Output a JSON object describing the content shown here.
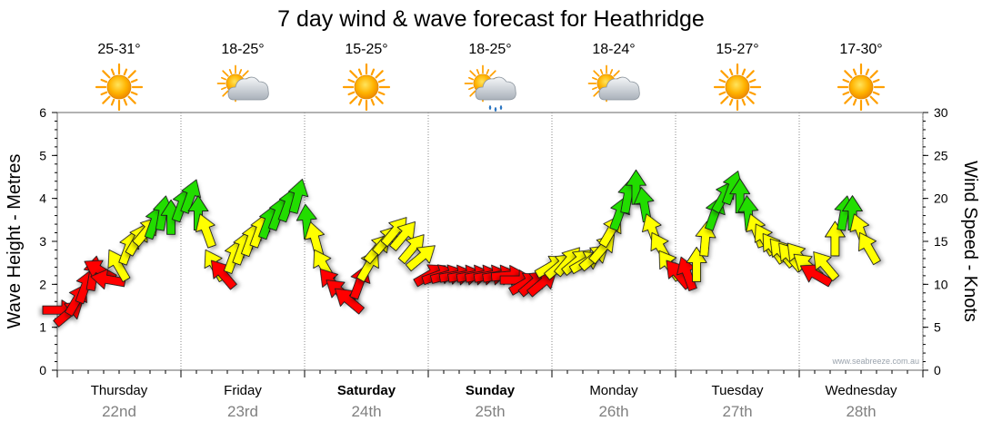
{
  "title": "7 day wind & wave forecast for Heathridge",
  "credit": "www.seabreeze.com.au",
  "days": [
    {
      "day": "Thursday",
      "date": "22nd",
      "temp": "25-31°",
      "icon": "sun-icon",
      "bold": false
    },
    {
      "day": "Friday",
      "date": "23rd",
      "temp": "18-25°",
      "icon": "partly-cloudy-icon",
      "bold": false
    },
    {
      "day": "Saturday",
      "date": "24th",
      "temp": "15-25°",
      "icon": "sun-icon",
      "bold": true
    },
    {
      "day": "Sunday",
      "date": "25th",
      "temp": "18-25°",
      "icon": "rain-cloud-icon",
      "bold": true
    },
    {
      "day": "Monday",
      "date": "26th",
      "temp": "18-24°",
      "icon": "partly-cloudy-icon",
      "bold": false
    },
    {
      "day": "Tuesday",
      "date": "27th",
      "temp": "15-27°",
      "icon": "sun-icon",
      "bold": false
    },
    {
      "day": "Wednesday",
      "date": "28th",
      "temp": "17-30°",
      "icon": "sun-icon",
      "bold": false
    }
  ],
  "colors": {
    "low": "#ff0000",
    "mid": "#ffff00",
    "high": "#22dd00",
    "grid": "#8a8a8a"
  },
  "chart_data": {
    "type": "line",
    "title": "7 day wind & wave forecast for Heathridge",
    "ylabel_left": "Wave Height - Metres",
    "ylabel_right": "Wind Speed - Knots",
    "ylim_left": [
      0,
      6
    ],
    "ylim_right": [
      0,
      30
    ],
    "yticks_left": [
      0,
      1,
      2,
      3,
      4,
      5,
      6
    ],
    "yticks_right": [
      0,
      5,
      10,
      15,
      20,
      25,
      30
    ],
    "x_unit": "days from Thursday 22nd 00:00",
    "series": [
      {
        "name": "Wind Speed - Knots",
        "color_by_speed": {
          "red_below": 12,
          "green_from": 17
        },
        "points": [
          {
            "x": 0.0,
            "kt": 7,
            "dir": 270
          },
          {
            "x": 0.08,
            "kt": 6.5,
            "dir": 230
          },
          {
            "x": 0.15,
            "kt": 8,
            "dir": 210
          },
          {
            "x": 0.22,
            "kt": 9.5,
            "dir": 200
          },
          {
            "x": 0.29,
            "kt": 11,
            "dir": 190
          },
          {
            "x": 0.36,
            "kt": 11.5,
            "dir": 120
          },
          {
            "x": 0.43,
            "kt": 10.5,
            "dir": 100
          },
          {
            "x": 0.5,
            "kt": 12,
            "dir": 150
          },
          {
            "x": 0.57,
            "kt": 14,
            "dir": 200
          },
          {
            "x": 0.64,
            "kt": 15,
            "dir": 210
          },
          {
            "x": 0.71,
            "kt": 16,
            "dir": 220
          },
          {
            "x": 0.78,
            "kt": 17,
            "dir": 200
          },
          {
            "x": 0.85,
            "kt": 18,
            "dir": 190
          },
          {
            "x": 0.92,
            "kt": 17.5,
            "dir": 180
          },
          {
            "x": 1.0,
            "kt": 19,
            "dir": 200
          },
          {
            "x": 1.07,
            "kt": 20,
            "dir": 200
          },
          {
            "x": 1.14,
            "kt": 18,
            "dir": 180
          },
          {
            "x": 1.21,
            "kt": 16,
            "dir": 160
          },
          {
            "x": 1.28,
            "kt": 12,
            "dir": 150
          },
          {
            "x": 1.35,
            "kt": 11,
            "dir": 140
          },
          {
            "x": 1.42,
            "kt": 13,
            "dir": 200
          },
          {
            "x": 1.49,
            "kt": 14,
            "dir": 200
          },
          {
            "x": 1.56,
            "kt": 15,
            "dir": 200
          },
          {
            "x": 1.63,
            "kt": 16,
            "dir": 200
          },
          {
            "x": 1.7,
            "kt": 17,
            "dir": 200
          },
          {
            "x": 1.78,
            "kt": 18,
            "dir": 200
          },
          {
            "x": 1.86,
            "kt": 19,
            "dir": 200
          },
          {
            "x": 1.94,
            "kt": 20,
            "dir": 195
          },
          {
            "x": 2.02,
            "kt": 17,
            "dir": 175
          },
          {
            "x": 2.09,
            "kt": 15,
            "dir": 165
          },
          {
            "x": 2.16,
            "kt": 12,
            "dir": 150
          },
          {
            "x": 2.23,
            "kt": 10,
            "dir": 140
          },
          {
            "x": 2.3,
            "kt": 9,
            "dir": 130
          },
          {
            "x": 2.37,
            "kt": 8,
            "dir": 130
          },
          {
            "x": 2.44,
            "kt": 10,
            "dir": 200
          },
          {
            "x": 2.51,
            "kt": 12,
            "dir": 210
          },
          {
            "x": 2.58,
            "kt": 14,
            "dir": 220
          },
          {
            "x": 2.65,
            "kt": 15,
            "dir": 220
          },
          {
            "x": 2.72,
            "kt": 16,
            "dir": 220
          },
          {
            "x": 2.79,
            "kt": 15.5,
            "dir": 220
          },
          {
            "x": 2.86,
            "kt": 14,
            "dir": 220
          },
          {
            "x": 2.93,
            "kt": 13,
            "dir": 230
          },
          {
            "x": 3.0,
            "kt": 11,
            "dir": 240
          },
          {
            "x": 3.07,
            "kt": 11,
            "dir": 250
          },
          {
            "x": 3.14,
            "kt": 11,
            "dir": 255
          },
          {
            "x": 3.21,
            "kt": 11,
            "dir": 260
          },
          {
            "x": 3.28,
            "kt": 11,
            "dir": 260
          },
          {
            "x": 3.35,
            "kt": 11,
            "dir": 260
          },
          {
            "x": 3.42,
            "kt": 11,
            "dir": 260
          },
          {
            "x": 3.49,
            "kt": 11,
            "dir": 260
          },
          {
            "x": 3.56,
            "kt": 11,
            "dir": 260
          },
          {
            "x": 3.63,
            "kt": 11,
            "dir": 265
          },
          {
            "x": 3.7,
            "kt": 10.5,
            "dir": 270
          },
          {
            "x": 3.77,
            "kt": 10,
            "dir": 240
          },
          {
            "x": 3.84,
            "kt": 10,
            "dir": 230
          },
          {
            "x": 3.91,
            "kt": 10,
            "dir": 230
          },
          {
            "x": 3.98,
            "kt": 12,
            "dir": 240
          },
          {
            "x": 4.05,
            "kt": 12,
            "dir": 230
          },
          {
            "x": 4.12,
            "kt": 12.5,
            "dir": 220
          },
          {
            "x": 4.19,
            "kt": 12.5,
            "dir": 230
          },
          {
            "x": 4.26,
            "kt": 12.5,
            "dir": 240
          },
          {
            "x": 4.33,
            "kt": 13,
            "dir": 230
          },
          {
            "x": 4.4,
            "kt": 14,
            "dir": 220
          },
          {
            "x": 4.47,
            "kt": 16,
            "dir": 210
          },
          {
            "x": 4.54,
            "kt": 18,
            "dir": 200
          },
          {
            "x": 4.61,
            "kt": 20,
            "dir": 190
          },
          {
            "x": 4.68,
            "kt": 21,
            "dir": 180
          },
          {
            "x": 4.75,
            "kt": 19,
            "dir": 170
          },
          {
            "x": 4.82,
            "kt": 16,
            "dir": 160
          },
          {
            "x": 4.89,
            "kt": 14,
            "dir": 150
          },
          {
            "x": 4.96,
            "kt": 12,
            "dir": 145
          },
          {
            "x": 5.03,
            "kt": 11,
            "dir": 140
          },
          {
            "x": 5.1,
            "kt": 11,
            "dir": 160
          },
          {
            "x": 5.17,
            "kt": 12,
            "dir": 180
          },
          {
            "x": 5.24,
            "kt": 15,
            "dir": 185
          },
          {
            "x": 5.31,
            "kt": 18,
            "dir": 200
          },
          {
            "x": 5.38,
            "kt": 20,
            "dir": 210
          },
          {
            "x": 5.45,
            "kt": 21,
            "dir": 200
          },
          {
            "x": 5.52,
            "kt": 20,
            "dir": 180
          },
          {
            "x": 5.59,
            "kt": 18,
            "dir": 175
          },
          {
            "x": 5.66,
            "kt": 16,
            "dir": 160
          },
          {
            "x": 5.73,
            "kt": 15,
            "dir": 150
          },
          {
            "x": 5.8,
            "kt": 14,
            "dir": 145
          },
          {
            "x": 5.87,
            "kt": 13.5,
            "dir": 140
          },
          {
            "x": 5.94,
            "kt": 13,
            "dir": 140
          },
          {
            "x": 6.01,
            "kt": 13,
            "dir": 140
          },
          {
            "x": 6.08,
            "kt": 12,
            "dir": 130
          },
          {
            "x": 6.15,
            "kt": 11,
            "dir": 120
          },
          {
            "x": 6.22,
            "kt": 12,
            "dir": 140
          },
          {
            "x": 6.29,
            "kt": 15,
            "dir": 180
          },
          {
            "x": 6.36,
            "kt": 18,
            "dir": 190
          },
          {
            "x": 6.43,
            "kt": 18,
            "dir": 180
          },
          {
            "x": 6.5,
            "kt": 16,
            "dir": 160
          },
          {
            "x": 6.57,
            "kt": 14,
            "dir": 150
          }
        ]
      }
    ]
  }
}
